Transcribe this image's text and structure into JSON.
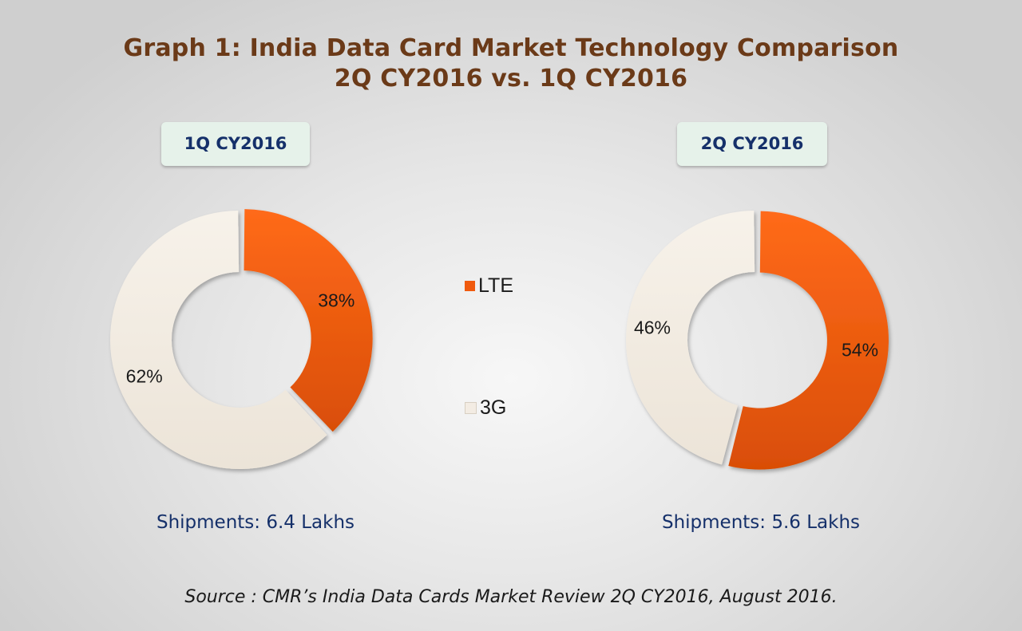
{
  "title": {
    "line1": "Graph 1: India Data Card Market Technology Comparison",
    "line2": "2Q CY2016 vs. 1Q CY2016"
  },
  "legend": [
    {
      "label": "LTE",
      "color": "#f05a0e"
    },
    {
      "label": "3G",
      "color": "#f3ece3"
    }
  ],
  "source": "Source : CMR’s India Data Cards Market Review 2Q CY2016, August 2016.",
  "chart_data": [
    {
      "type": "pie",
      "title": "1Q CY2016",
      "categories": [
        "LTE",
        "3G"
      ],
      "values": [
        38,
        62
      ],
      "labels": [
        "38%",
        "62%"
      ],
      "colors": [
        "#f05a0e",
        "#f3ece3"
      ],
      "footnote": "Shipments: 6.4 Lakhs",
      "legend_position": "center"
    },
    {
      "type": "pie",
      "title": "2Q CY2016",
      "categories": [
        "LTE",
        "3G"
      ],
      "values": [
        54,
        46
      ],
      "labels": [
        "54%",
        "46%"
      ],
      "colors": [
        "#f05a0e",
        "#f3ece3"
      ],
      "footnote": "Shipments: 5.6 Lakhs",
      "legend_position": "center"
    }
  ]
}
